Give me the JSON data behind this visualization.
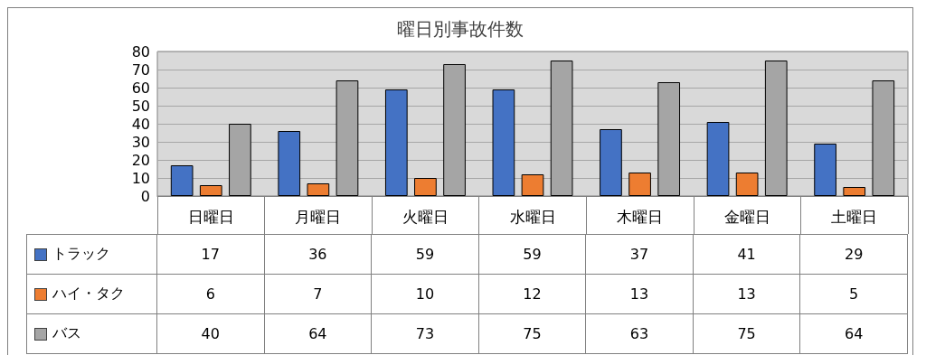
{
  "chart_data": {
    "type": "bar",
    "title": "曜日別事故件数",
    "categories": [
      "日曜日",
      "月曜日",
      "火曜日",
      "水曜日",
      "木曜日",
      "金曜日",
      "土曜日"
    ],
    "series": [
      {
        "name": "トラック",
        "color": "#4472c4",
        "values": [
          17,
          36,
          59,
          59,
          37,
          41,
          29
        ]
      },
      {
        "name": "ハイ・タク",
        "color": "#ed7d31",
        "values": [
          6,
          7,
          10,
          12,
          13,
          13,
          5
        ]
      },
      {
        "name": "バス",
        "color": "#a5a5a5",
        "values": [
          40,
          64,
          73,
          75,
          63,
          75,
          64
        ]
      }
    ],
    "ylim": [
      0,
      80
    ],
    "yticks": [
      0,
      10,
      20,
      30,
      40,
      50,
      60,
      70,
      80
    ],
    "grid": "y",
    "legend": "bottom left",
    "data_labels": true
  }
}
